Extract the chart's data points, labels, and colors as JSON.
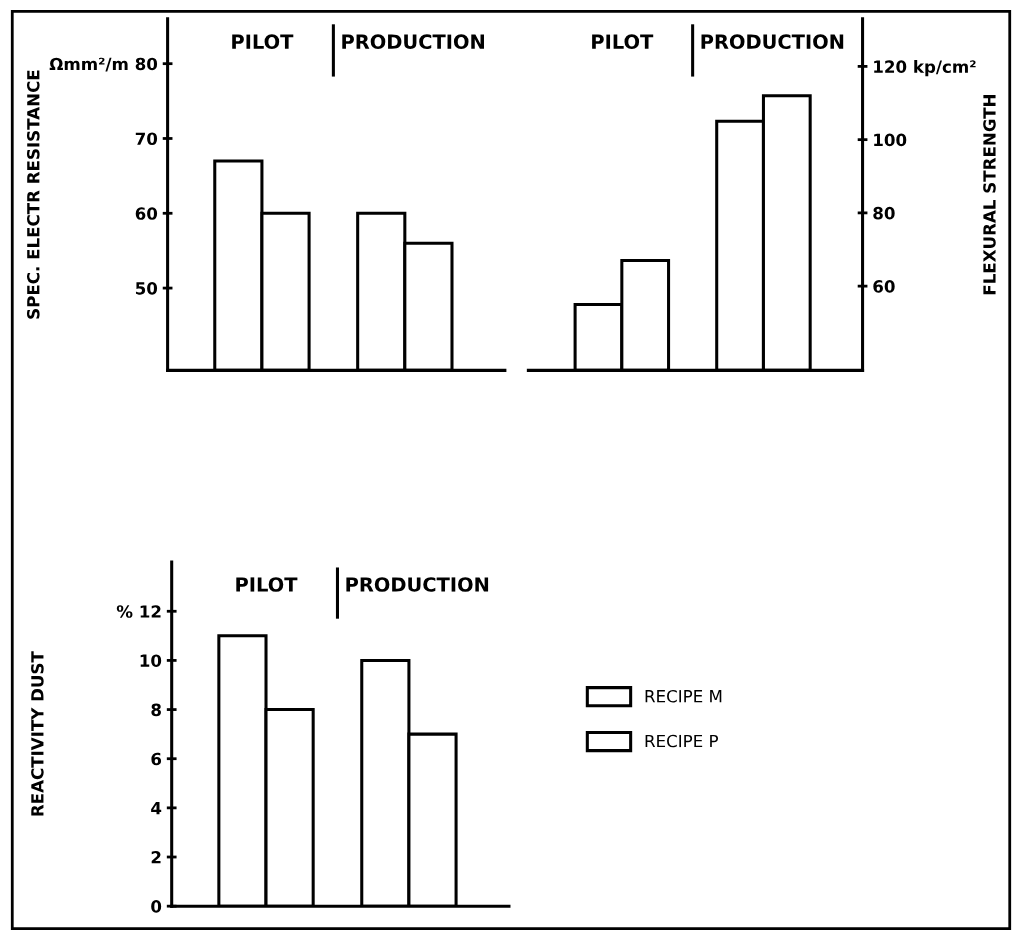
{
  "chart_data": [
    {
      "type": "bar",
      "ylabel": "SPEC. ELECTR RESISTANCE",
      "categories": [
        "PILOT",
        "PRODUCTION"
      ],
      "series": [
        {
          "name": "RECIPE M",
          "color": "#ffffff",
          "values": [
            67,
            60
          ]
        },
        {
          "name": "RECIPE P",
          "color": "#ffffff",
          "values": [
            60,
            56
          ]
        }
      ],
      "ylim": [
        39,
        86
      ],
      "yticks": [
        50,
        60,
        70,
        {
          "value": 80,
          "label": "Ωmm²/m 80"
        }
      ],
      "grid": false,
      "legend": "bottom right"
    },
    {
      "type": "bar",
      "y2label": "FLEXURAL STRENGTH",
      "categories": [
        "PILOT",
        "PRODUCTION"
      ],
      "series": [
        {
          "color": "#ffffff",
          "axis": "y2",
          "values": [
            55,
            105
          ]
        },
        {
          "color": "#ffffff",
          "axis": "y2",
          "values": [
            67,
            112
          ]
        }
      ],
      "y2lim": [
        37,
        133
      ],
      "y2ticks": [
        60,
        80,
        100,
        {
          "value": 120,
          "label": "120 kp/cm²"
        }
      ],
      "grid": false
    },
    {
      "type": "bar",
      "ylabel": "REACTIVITY DUST",
      "categories": [
        "PILOT",
        "PRODUCTION"
      ],
      "series": [
        {
          "color": "#ffffff",
          "values": [
            11,
            10
          ]
        },
        {
          "color": "#ffffff",
          "values": [
            8,
            7
          ]
        }
      ],
      "ylim": [
        0,
        14
      ],
      "yticks": [
        0,
        2,
        4,
        6,
        8,
        10,
        {
          "value": 12,
          "label": "% 12"
        }
      ],
      "grid": false
    }
  ]
}
